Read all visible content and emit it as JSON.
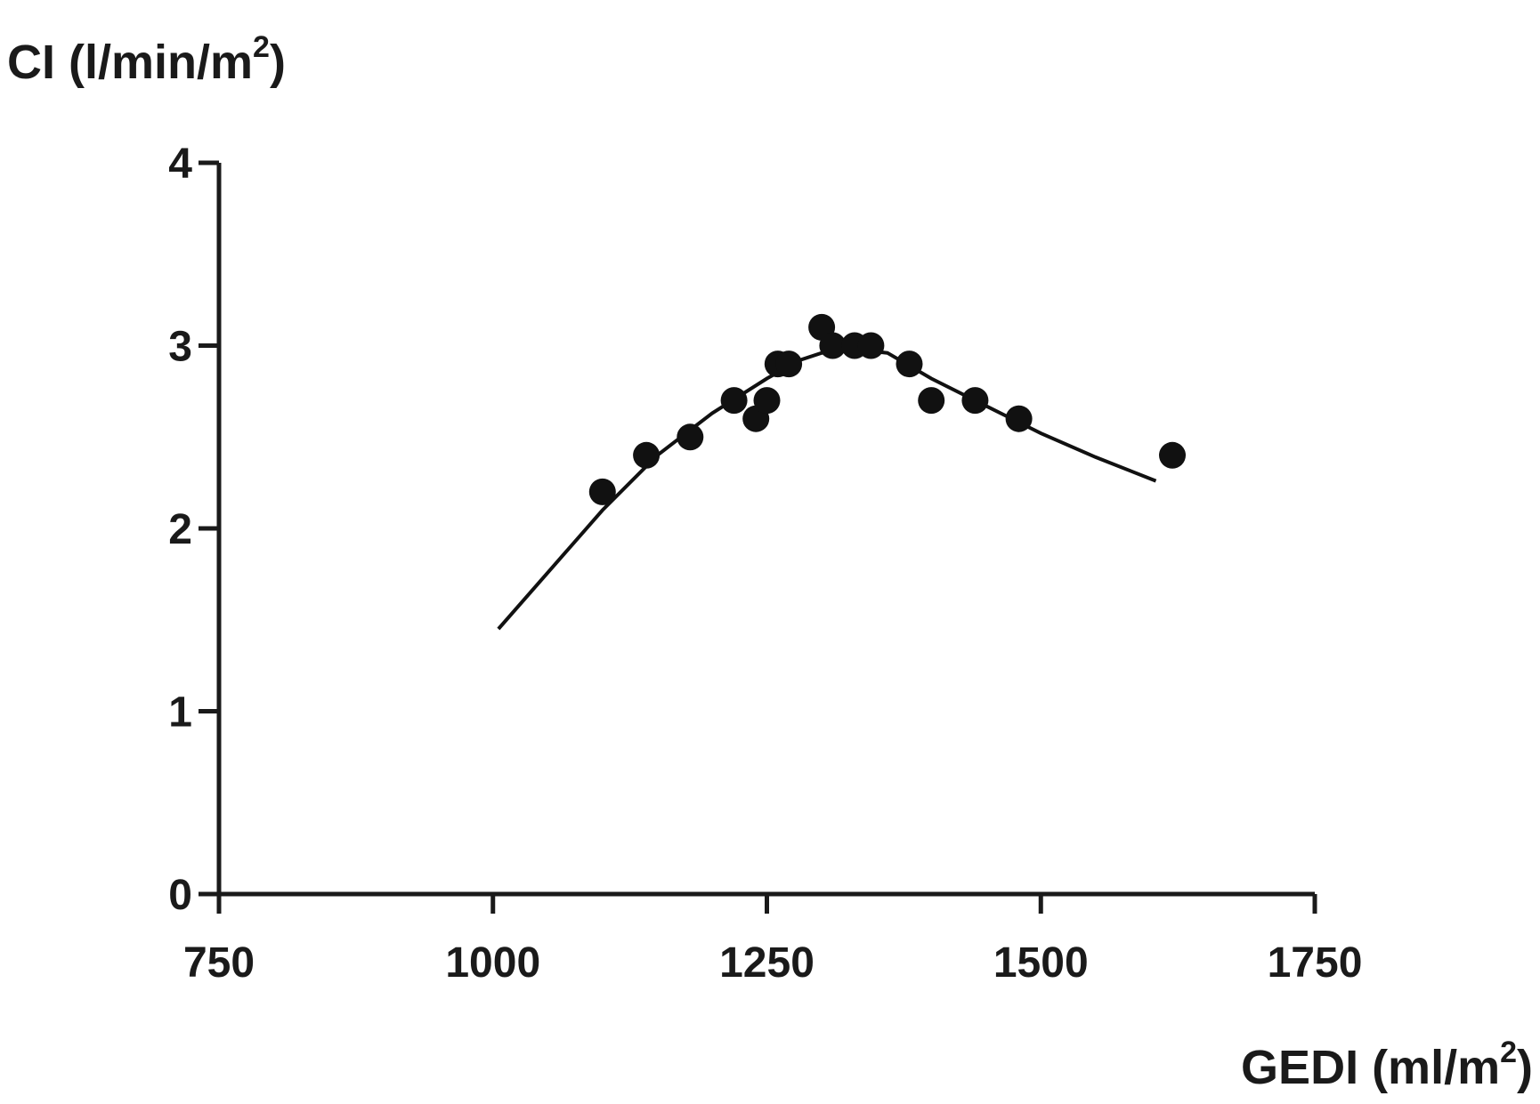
{
  "chart_data": {
    "type": "scatter",
    "ylabel": "CI (l/min/m",
    "ylabel_sup": "2",
    "ylabel_close": ")",
    "xlabel": "GEDI (ml/m",
    "xlabel_sup": "2",
    "xlabel_close": ")",
    "xlim": [
      750,
      1750
    ],
    "ylim": [
      0,
      4
    ],
    "xticks": [
      750,
      1000,
      1250,
      1500,
      1750
    ],
    "yticks": [
      0,
      1,
      2,
      3,
      4
    ],
    "grid": false,
    "points": [
      {
        "x": 1100,
        "y": 2.2
      },
      {
        "x": 1140,
        "y": 2.4
      },
      {
        "x": 1180,
        "y": 2.5
      },
      {
        "x": 1220,
        "y": 2.7
      },
      {
        "x": 1240,
        "y": 2.6
      },
      {
        "x": 1250,
        "y": 2.7
      },
      {
        "x": 1260,
        "y": 2.9
      },
      {
        "x": 1270,
        "y": 2.9
      },
      {
        "x": 1300,
        "y": 3.1
      },
      {
        "x": 1310,
        "y": 3.0
      },
      {
        "x": 1330,
        "y": 3.0
      },
      {
        "x": 1345,
        "y": 3.0
      },
      {
        "x": 1380,
        "y": 2.9
      },
      {
        "x": 1400,
        "y": 2.7
      },
      {
        "x": 1440,
        "y": 2.7
      },
      {
        "x": 1480,
        "y": 2.6
      },
      {
        "x": 1620,
        "y": 2.4
      }
    ],
    "fit_line": {
      "x": [
        1005,
        1100,
        1150,
        1200,
        1250,
        1280,
        1300,
        1330,
        1360,
        1400,
        1450,
        1500,
        1550,
        1605
      ],
      "y": [
        1.45,
        2.1,
        2.4,
        2.63,
        2.82,
        2.92,
        2.96,
        2.98,
        2.96,
        2.82,
        2.67,
        2.52,
        2.39,
        2.26
      ]
    },
    "colors": {
      "marks": "#111111",
      "axes": "#1a1a1a",
      "background": "#ffffff"
    }
  }
}
